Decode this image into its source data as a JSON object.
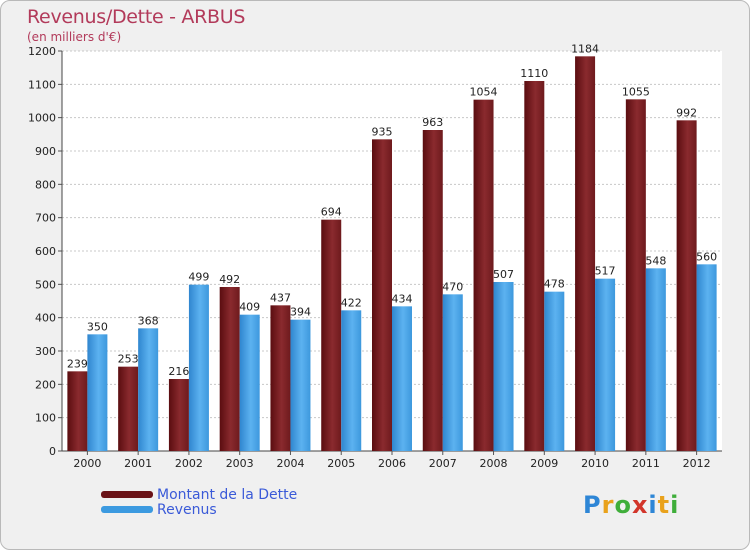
{
  "title": "Revenus/Dette - ARBUS",
  "subtitle": "(en milliers d'€)",
  "colors": {
    "dette": "#7a1f22",
    "revenus": "#4aa3e8",
    "title": "#b23a5a",
    "legend_text": "#3a5ad8"
  },
  "legend": {
    "dette": "Montant de la Dette",
    "revenus": "Revenus"
  },
  "logo": {
    "text": "Proxiti",
    "icon": "proxiti-logo-icon"
  },
  "chart_data": {
    "type": "bar",
    "title": "Revenus/Dette - ARBUS",
    "subtitle": "(en milliers d'€)",
    "categories": [
      "2000",
      "2001",
      "2002",
      "2003",
      "2004",
      "2005",
      "2006",
      "2007",
      "2008",
      "2009",
      "2010",
      "2011",
      "2012"
    ],
    "series": [
      {
        "name": "Montant de la Dette",
        "values": [
          239,
          253,
          216,
          492,
          437,
          694,
          935,
          963,
          1054,
          1110,
          1184,
          1055,
          992
        ]
      },
      {
        "name": "Revenus",
        "values": [
          350,
          368,
          499,
          409,
          394,
          422,
          434,
          470,
          507,
          478,
          517,
          548,
          560
        ]
      }
    ],
    "ylim": [
      0,
      1200
    ],
    "yticks": [
      0,
      100,
      200,
      300,
      400,
      500,
      600,
      700,
      800,
      900,
      1000,
      1100,
      1200
    ],
    "grid": true,
    "legend_position": "bottom-left"
  }
}
